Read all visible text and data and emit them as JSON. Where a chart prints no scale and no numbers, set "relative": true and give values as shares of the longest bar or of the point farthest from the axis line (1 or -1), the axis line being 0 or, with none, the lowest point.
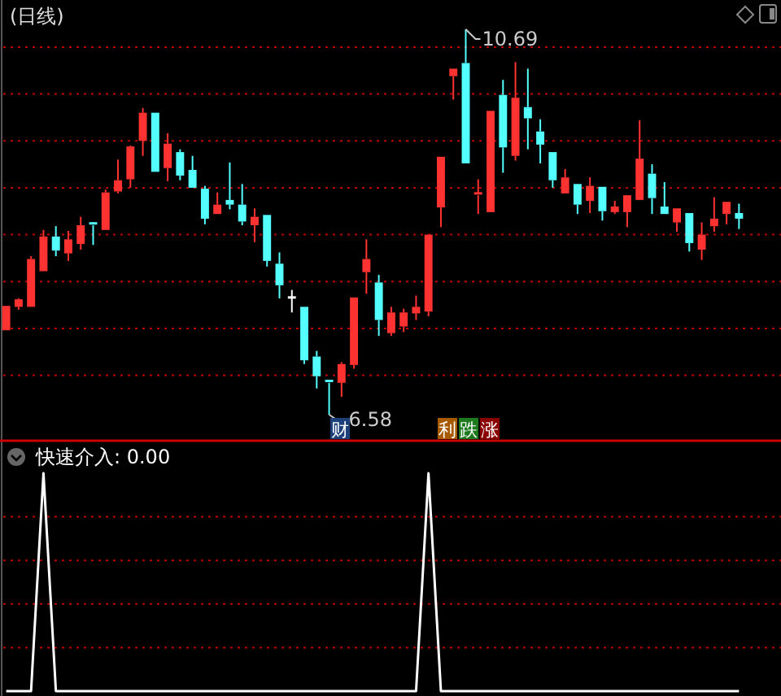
{
  "chart_data": [
    {
      "type": "candlestick",
      "title": "(日线)",
      "ref_lines": [
        {
          "axis": "y",
          "value": 10.5,
          "color": "#c00000",
          "line_style": "dotted"
        },
        {
          "axis": "y",
          "value": 10.0,
          "color": "#c00000",
          "line_style": "dotted"
        },
        {
          "axis": "y",
          "value": 9.5,
          "color": "#c00000",
          "line_style": "dotted"
        },
        {
          "axis": "y",
          "value": 9.0,
          "color": "#c00000",
          "line_style": "dotted"
        },
        {
          "axis": "y",
          "value": 8.5,
          "color": "#c00000",
          "line_style": "dotted"
        },
        {
          "axis": "y",
          "value": 8.0,
          "color": "#c00000",
          "line_style": "dotted"
        },
        {
          "axis": "y",
          "value": 7.5,
          "color": "#c00000",
          "line_style": "dotted"
        },
        {
          "axis": "y",
          "value": 7.0,
          "color": "#c00000",
          "line_style": "dotted"
        }
      ],
      "categories": [
        null,
        null,
        null,
        null,
        null,
        null,
        null,
        null,
        null,
        null,
        null,
        null,
        null,
        null,
        null,
        null,
        null,
        null,
        null,
        null,
        null,
        null,
        null,
        null,
        null,
        null,
        null,
        null,
        null,
        null,
        null,
        null,
        null,
        null,
        null,
        null,
        null,
        null,
        null,
        null,
        null,
        null,
        null,
        null,
        null,
        null,
        null,
        null,
        null,
        null,
        null,
        null,
        null,
        null,
        null,
        null,
        null,
        null,
        null,
        null
      ],
      "ohlc": [
        [
          7.48,
          7.74,
          7.48,
          7.74
        ],
        [
          7.73,
          7.82,
          7.7,
          7.81
        ],
        [
          7.73,
          8.27,
          7.73,
          8.24
        ],
        [
          8.11,
          8.55,
          8.11,
          8.48
        ],
        [
          8.48,
          8.59,
          8.27,
          8.33
        ],
        [
          8.3,
          8.54,
          8.22,
          8.45
        ],
        [
          8.4,
          8.69,
          8.34,
          8.6
        ],
        [
          8.62,
          8.63,
          8.39,
          8.6
        ],
        [
          8.55,
          8.98,
          8.55,
          8.95
        ],
        [
          8.96,
          9.3,
          8.94,
          9.08
        ],
        [
          9.09,
          9.45,
          9.0,
          9.44
        ],
        [
          9.5,
          9.85,
          9.34,
          9.8
        ],
        [
          9.8,
          9.8,
          9.17,
          9.17
        ],
        [
          9.21,
          9.58,
          9.07,
          9.47
        ],
        [
          9.38,
          9.41,
          9.08,
          9.13
        ],
        [
          9.19,
          9.34,
          9.0,
          9.0
        ],
        [
          8.99,
          9.02,
          8.61,
          8.67
        ],
        [
          8.72,
          8.95,
          8.72,
          8.82
        ],
        [
          8.87,
          9.27,
          8.77,
          8.82
        ],
        [
          8.82,
          9.04,
          8.6,
          8.64
        ],
        [
          8.6,
          8.78,
          8.42,
          8.69
        ],
        [
          8.71,
          8.71,
          8.16,
          8.22
        ],
        [
          8.19,
          8.31,
          7.82,
          7.96
        ],
        [
          7.83,
          7.91,
          7.67,
          7.83
        ],
        [
          7.73,
          7.73,
          7.12,
          7.16
        ],
        [
          7.2,
          7.26,
          6.86,
          6.99
        ],
        [
          6.94,
          6.94,
          6.58,
          6.92
        ],
        [
          6.92,
          7.14,
          6.77,
          7.12
        ],
        [
          7.11,
          7.83,
          7.07,
          7.83
        ],
        [
          8.1,
          8.45,
          7.87,
          8.24
        ],
        [
          7.99,
          8.07,
          7.42,
          7.59
        ],
        [
          7.45,
          7.73,
          7.42,
          7.67
        ],
        [
          7.52,
          7.71,
          7.46,
          7.67
        ],
        [
          7.66,
          7.85,
          7.59,
          7.73
        ],
        [
          7.68,
          8.5,
          7.63,
          8.5
        ],
        [
          8.79,
          9.33,
          8.58,
          9.33
        ],
        [
          10.19,
          10.27,
          9.94,
          10.27
        ],
        [
          10.33,
          10.69,
          9.26,
          9.26
        ],
        [
          8.92,
          9.09,
          8.72,
          8.94
        ],
        [
          8.74,
          9.82,
          8.74,
          9.82
        ],
        [
          9.99,
          10.15,
          9.16,
          9.43
        ],
        [
          9.34,
          10.34,
          9.29,
          9.96
        ],
        [
          9.86,
          10.27,
          9.41,
          9.74
        ],
        [
          9.6,
          9.73,
          9.26,
          9.46
        ],
        [
          9.38,
          9.38,
          9.0,
          9.08
        ],
        [
          8.94,
          9.2,
          8.94,
          9.11
        ],
        [
          9.04,
          9.04,
          8.72,
          8.82
        ],
        [
          8.86,
          9.11,
          8.73,
          9.02
        ],
        [
          9.01,
          9.01,
          8.65,
          8.75
        ],
        [
          8.74,
          8.86,
          8.72,
          8.8
        ],
        [
          8.74,
          8.92,
          8.58,
          8.92
        ],
        [
          8.87,
          9.72,
          8.87,
          9.31
        ],
        [
          9.15,
          9.25,
          8.72,
          8.89
        ],
        [
          8.8,
          9.06,
          8.72,
          8.72
        ],
        [
          8.63,
          8.78,
          8.53,
          8.78
        ],
        [
          8.73,
          8.73,
          8.32,
          8.41
        ],
        [
          8.34,
          8.63,
          8.23,
          8.5
        ],
        [
          8.59,
          8.9,
          8.53,
          8.67
        ],
        [
          8.72,
          8.85,
          8.61,
          8.85
        ],
        [
          8.73,
          8.83,
          8.56,
          8.67
        ]
      ],
      "colors": [
        "#ff3232",
        "#ff3232",
        "#ff3232",
        "#ff3232",
        "#54ffff",
        "#ff3232",
        "#ff3232",
        "#54ffff",
        "#ff3232",
        "#ff3232",
        "#ff3232",
        "#ff3232",
        "#54ffff",
        "#ff3232",
        "#54ffff",
        "#54ffff",
        "#54ffff",
        "#ff3232",
        "#54ffff",
        "#54ffff",
        "#ff3232",
        "#54ffff",
        "#54ffff",
        "#ffffff",
        "#54ffff",
        "#54ffff",
        "#54ffff",
        "#ff3232",
        "#ff3232",
        "#ff3232",
        "#54ffff",
        "#ff3232",
        "#ff3232",
        "#ff3232",
        "#ff3232",
        "#ff3232",
        "#ff3232",
        "#54ffff",
        "#ff3232",
        "#ff3232",
        "#54ffff",
        "#ff3232",
        "#54ffff",
        "#54ffff",
        "#54ffff",
        "#ff3232",
        "#54ffff",
        "#ff3232",
        "#54ffff",
        "#ff3232",
        "#ff3232",
        "#ff3232",
        "#54ffff",
        "#54ffff",
        "#ff3232",
        "#54ffff",
        "#ff3232",
        "#ff3232",
        "#ff3232",
        "#54ffff"
      ],
      "annotations": [
        "10.69",
        "6.58",
        "财",
        "利",
        "跌",
        "涨"
      ]
    },
    {
      "type": "line",
      "title": "快速介入: 0.00",
      "relative": true,
      "ref_lines": [
        {
          "axis": "y",
          "value": 0.8,
          "color": "#c00000",
          "line_style": "dotted"
        },
        {
          "axis": "y",
          "value": 0.6,
          "color": "#c00000",
          "line_style": "dotted"
        },
        {
          "axis": "y",
          "value": 0.4,
          "color": "#c00000",
          "line_style": "dotted"
        },
        {
          "axis": "y",
          "value": 0.2,
          "color": "#c00000",
          "line_style": "dotted"
        }
      ],
      "categories": [
        null,
        null,
        null,
        null,
        null,
        null,
        null,
        null,
        null,
        null,
        null,
        null,
        null,
        null,
        null,
        null,
        null,
        null,
        null,
        null,
        null,
        null,
        null,
        null,
        null,
        null,
        null,
        null,
        null,
        null,
        null,
        null,
        null,
        null,
        null,
        null,
        null,
        null,
        null,
        null,
        null,
        null,
        null,
        null,
        null,
        null,
        null,
        null,
        null,
        null,
        null,
        null,
        null,
        null,
        null,
        null,
        null,
        null,
        null,
        null
      ],
      "series": [
        {
          "color": "#ffffff",
          "values": [
            0,
            0,
            0,
            1,
            0,
            0,
            0,
            0,
            0,
            0,
            0,
            0,
            0,
            0,
            0,
            0,
            0,
            0,
            0,
            0,
            0,
            0,
            0,
            0,
            0,
            0,
            0,
            0,
            0,
            0,
            0,
            0,
            0,
            0,
            1,
            0,
            0,
            0,
            0,
            0,
            0,
            0,
            0,
            0,
            0,
            0,
            0,
            0,
            0,
            0,
            0,
            0,
            0,
            0,
            0,
            0,
            0,
            0,
            0,
            0
          ]
        }
      ]
    }
  ]
}
